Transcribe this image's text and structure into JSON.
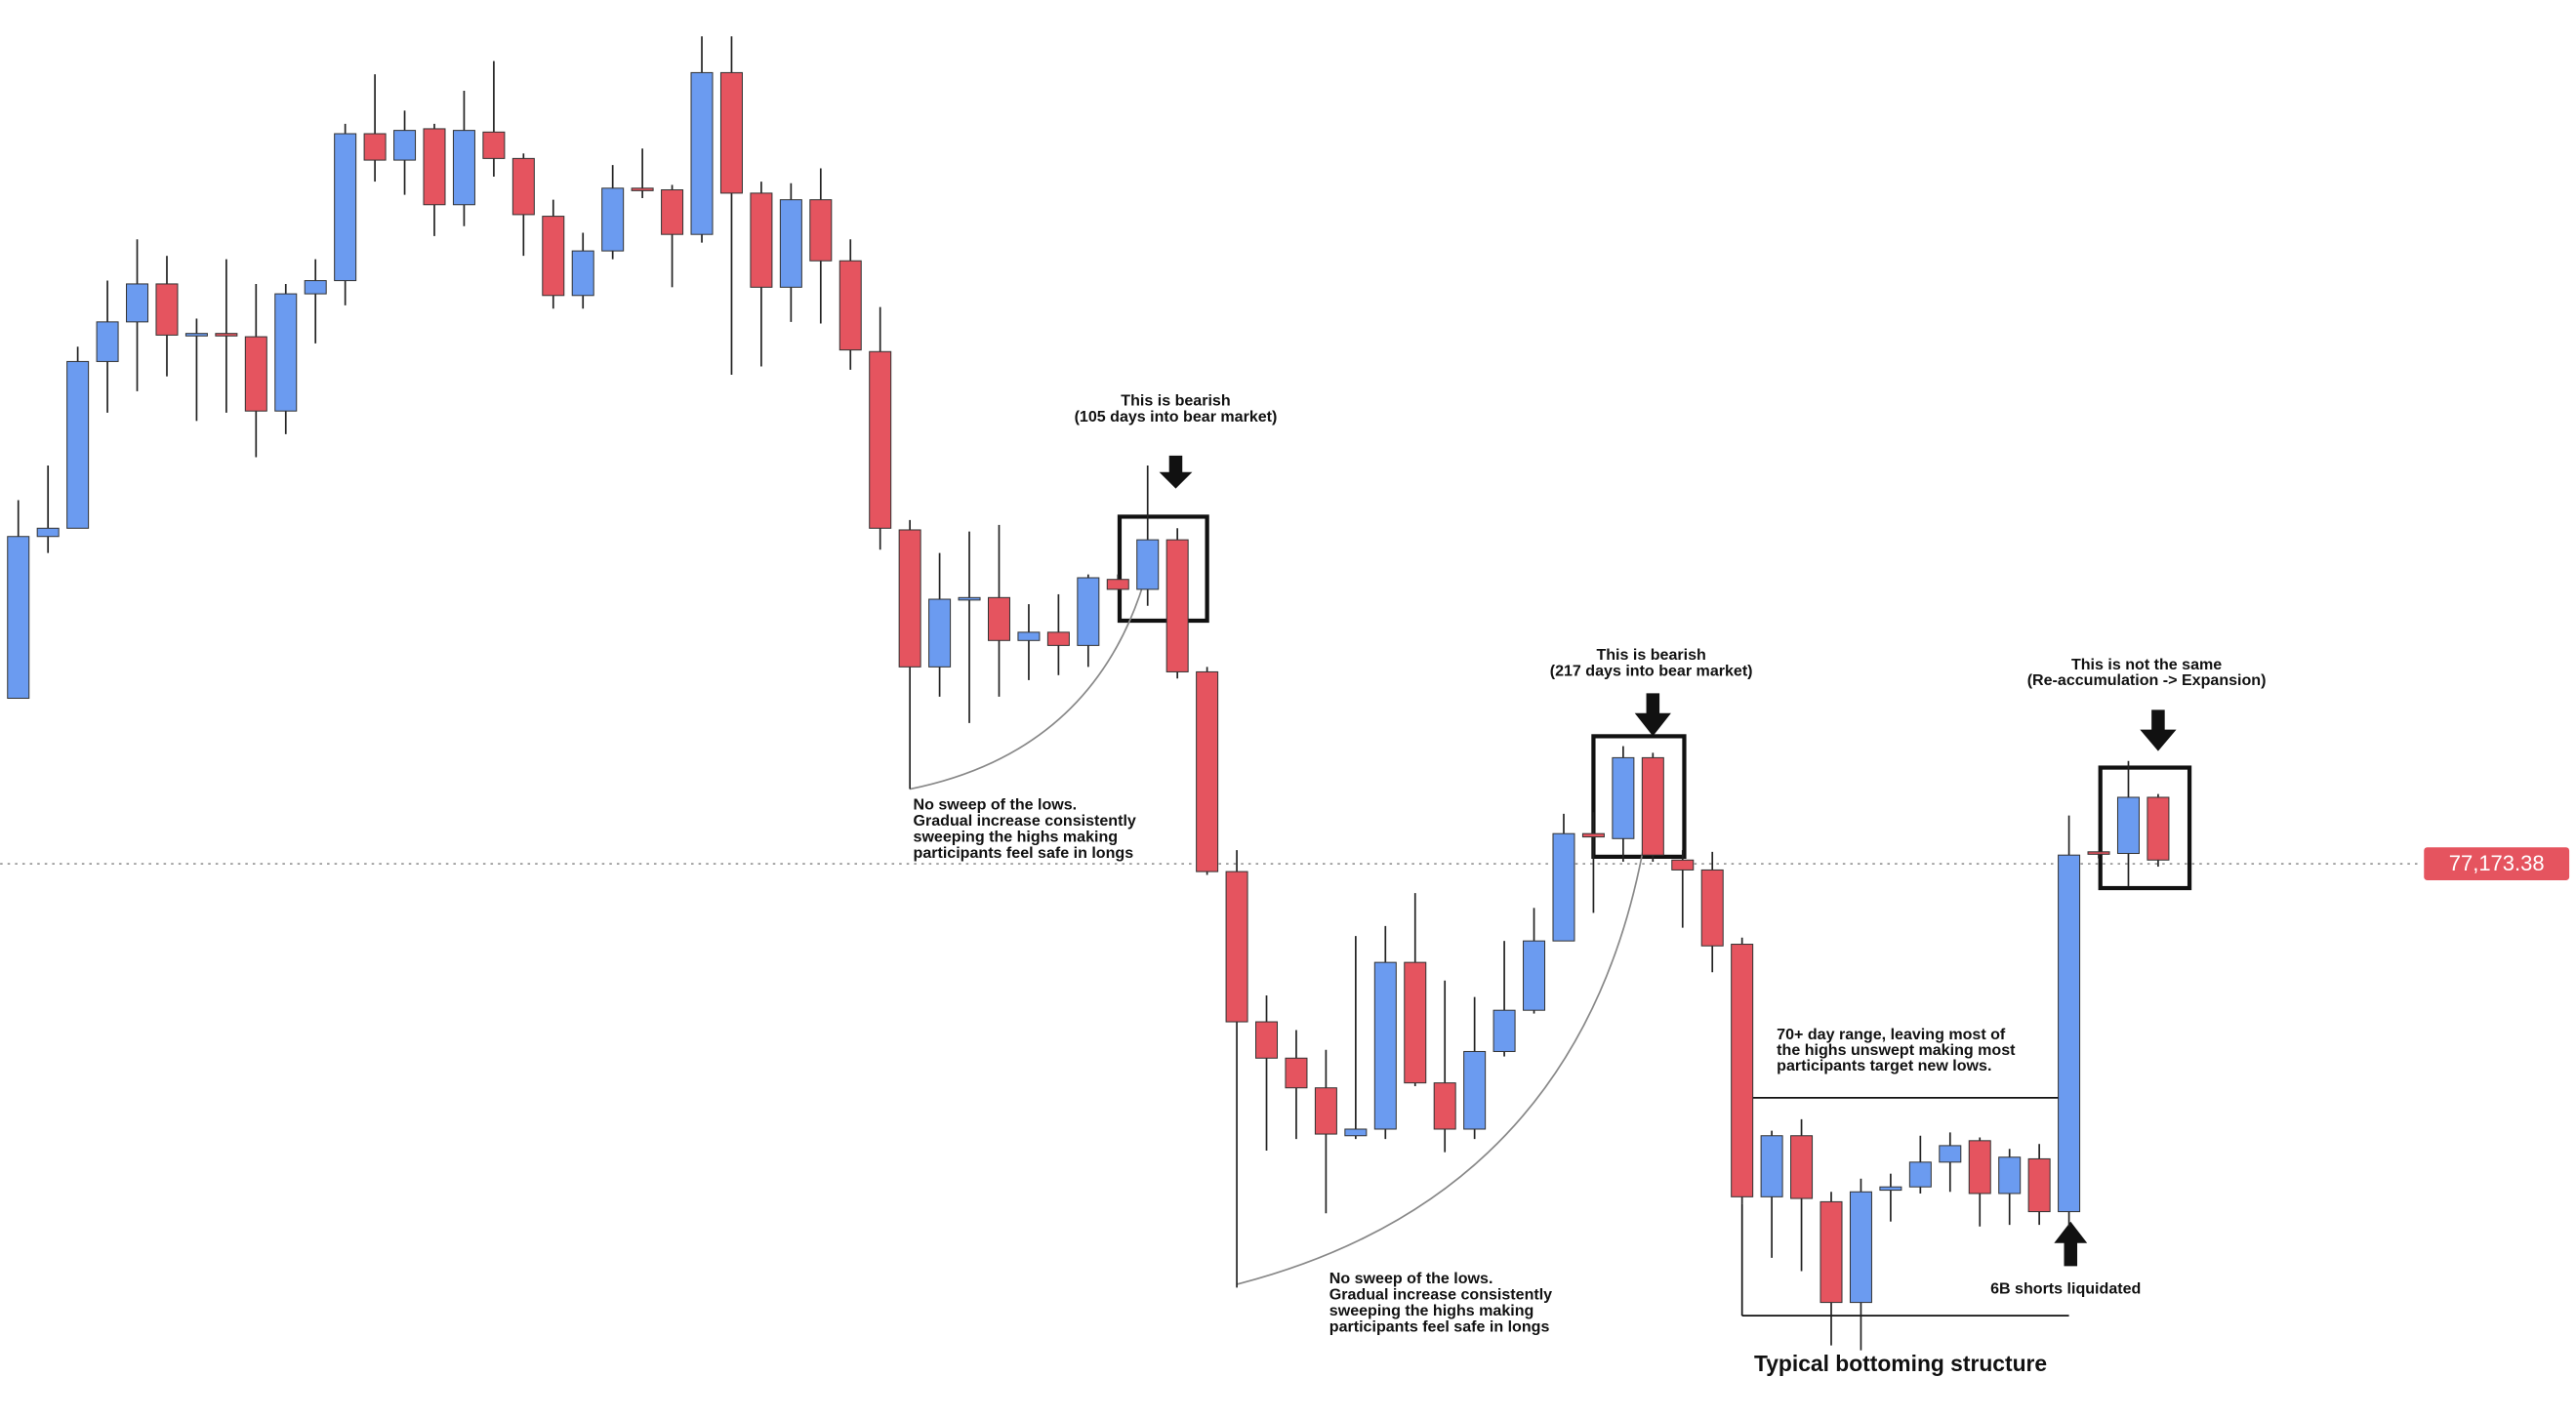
{
  "chart_data": {
    "type": "candlestick",
    "ylim": [
      43600,
      129500
    ],
    "up_color": "#6b9bf0",
    "down_color": "#e5545f",
    "open": [
      87200,
      97000,
      97500,
      107600,
      110000,
      112300,
      109200,
      109300,
      109100,
      104600,
      111700,
      112500,
      121400,
      119800,
      121700,
      117100,
      121500,
      119900,
      116400,
      111600,
      114300,
      118100,
      118000,
      115300,
      125100,
      117800,
      112100,
      117400,
      113700,
      108200,
      97400,
      89100,
      93200,
      93300,
      90700,
      91200,
      90400,
      94400,
      93800,
      96800,
      88800,
      76700,
      67600,
      65400,
      63600,
      60700,
      61100,
      71200,
      63900,
      61100,
      65800,
      68300,
      72500,
      79000,
      78700,
      83600,
      77400,
      76800,
      72300,
      57000,
      60700,
      56700,
      50600,
      57400,
      57600,
      59100,
      60400,
      57200,
      59300,
      56100,
      77900,
      77800,
      81200
    ],
    "high": [
      99200,
      101300,
      108500,
      112500,
      115000,
      114000,
      110200,
      113800,
      112300,
      112300,
      113800,
      122000,
      125000,
      122800,
      122000,
      124000,
      125800,
      120200,
      117400,
      115400,
      119500,
      120500,
      118300,
      127300,
      127300,
      118500,
      118400,
      119300,
      115000,
      110900,
      98000,
      96000,
      97300,
      97700,
      92900,
      93500,
      94700,
      94700,
      101300,
      97500,
      89100,
      78000,
      69200,
      67100,
      65900,
      72800,
      73400,
      75400,
      70100,
      69100,
      72500,
      74500,
      80200,
      80300,
      84300,
      83900,
      78000,
      77900,
      72700,
      61000,
      61700,
      57300,
      58100,
      58400,
      60700,
      60900,
      60600,
      59900,
      60200,
      80100,
      77900,
      83400,
      81400
    ],
    "low": [
      87200,
      96000,
      97500,
      104500,
      105800,
      106700,
      104000,
      104500,
      101800,
      103200,
      108700,
      111000,
      118500,
      117700,
      115200,
      115800,
      118800,
      114000,
      110800,
      110800,
      113800,
      117500,
      112100,
      114800,
      106800,
      107300,
      110000,
      109900,
      107100,
      96200,
      81700,
      87300,
      85700,
      87300,
      88300,
      88600,
      89100,
      93800,
      92800,
      88400,
      76500,
      51500,
      59800,
      60500,
      56000,
      60500,
      60500,
      63700,
      59700,
      60500,
      65500,
      68100,
      72500,
      74200,
      77300,
      77300,
      73300,
      70600,
      56600,
      53300,
      52500,
      48000,
      47700,
      55500,
      57200,
      57300,
      55200,
      55300,
      55300,
      55200,
      77500,
      75800,
      77000
    ],
    "close": [
      97000,
      97500,
      107600,
      110000,
      112300,
      109200,
      109300,
      109200,
      104600,
      111700,
      112500,
      121400,
      119800,
      121600,
      117100,
      121600,
      119900,
      116500,
      111600,
      114300,
      118100,
      118000,
      115300,
      125100,
      117800,
      112100,
      117400,
      113700,
      108300,
      97500,
      89100,
      93200,
      93300,
      90700,
      91200,
      90400,
      94500,
      93800,
      96800,
      88800,
      76700,
      67600,
      65400,
      63600,
      60800,
      61100,
      71200,
      63900,
      61100,
      65800,
      68300,
      72500,
      79000,
      78800,
      83600,
      77700,
      76800,
      72200,
      57000,
      60700,
      56900,
      50600,
      57300,
      57600,
      59100,
      60100,
      57200,
      59400,
      56100,
      77700,
      77800,
      81200,
      77400
    ],
    "last_price": {
      "value": 77173.38,
      "label": "77,173.38"
    },
    "last_price_color": "#e5545f",
    "annotations": [
      {
        "lines": [
          "This is bearish",
          "(105 days into bear market)"
        ]
      },
      {
        "lines": [
          "No sweep of the lows.",
          "Gradual increase consistently",
          "sweeping the highs making",
          "participants feel safe in longs"
        ]
      },
      {
        "lines": [
          "This is bearish",
          "(217 days into bear market)"
        ]
      },
      {
        "lines": [
          "No sweep of the lows.",
          "Gradual increase consistently",
          "sweeping the highs making",
          "participants feel safe in longs"
        ]
      },
      {
        "lines": [
          "This is not the same",
          "(Re-accumulation -> Expansion)"
        ]
      },
      {
        "lines": [
          "70+ day range, leaving most of",
          "the highs unswept making most",
          "participants target new lows."
        ]
      },
      {
        "lines": [
          "6B shorts liquidated"
        ]
      },
      {
        "lines": [
          "Typical bottoming structure"
        ]
      }
    ]
  }
}
